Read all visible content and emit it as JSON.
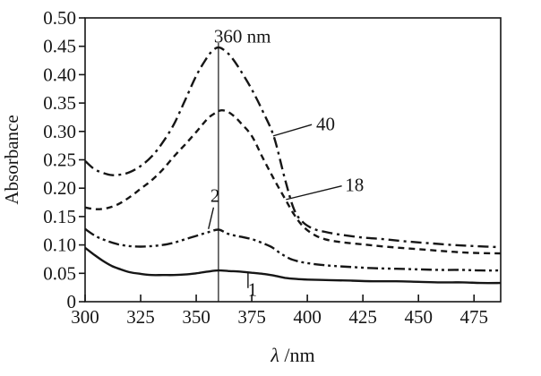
{
  "figure": {
    "background": "#ffffff",
    "ink": "#161616",
    "description": "UV-Vis absorbance spectra at different times with peak marked at 360 nm"
  },
  "chart_data": {
    "type": "line",
    "title": "",
    "xlabel": "λ/nm",
    "ylabel": "Absorbance",
    "xlim": [
      300,
      487
    ],
    "ylim": [
      0,
      0.5
    ],
    "grid": false,
    "legend_position": "none",
    "x_ticks": [
      300,
      325,
      350,
      375,
      400,
      425,
      450,
      475
    ],
    "y_ticks": [
      {
        "value": 0.0,
        "label": "0"
      },
      {
        "value": 0.05,
        "label": "0.05"
      },
      {
        "value": 0.1,
        "label": "0.10"
      },
      {
        "value": 0.15,
        "label": "0.15"
      },
      {
        "value": 0.2,
        "label": "0.20"
      },
      {
        "value": 0.25,
        "label": "0.25"
      },
      {
        "value": 0.3,
        "label": "0.30"
      },
      {
        "value": 0.35,
        "label": "0.35"
      },
      {
        "value": 0.4,
        "label": "0.40"
      },
      {
        "value": 0.45,
        "label": "0.45"
      },
      {
        "value": 0.5,
        "label": "0.50"
      }
    ],
    "marker_line": {
      "x": 360,
      "y0": 0,
      "y1": 0.456,
      "label": "360 nm"
    },
    "series": [
      {
        "name": "40",
        "style": "dash-dot",
        "points": [
          [
            300,
            0.248
          ],
          [
            304,
            0.234
          ],
          [
            308,
            0.227
          ],
          [
            312,
            0.223
          ],
          [
            316,
            0.224
          ],
          [
            320,
            0.228
          ],
          [
            325,
            0.239
          ],
          [
            330,
            0.256
          ],
          [
            335,
            0.281
          ],
          [
            340,
            0.313
          ],
          [
            345,
            0.355
          ],
          [
            350,
            0.398
          ],
          [
            354,
            0.425
          ],
          [
            357,
            0.441
          ],
          [
            360,
            0.448
          ],
          [
            363,
            0.442
          ],
          [
            366,
            0.43
          ],
          [
            370,
            0.407
          ],
          [
            375,
            0.374
          ],
          [
            380,
            0.335
          ],
          [
            385,
            0.29
          ],
          [
            390,
            0.215
          ],
          [
            394,
            0.163
          ],
          [
            398,
            0.14
          ],
          [
            403,
            0.128
          ],
          [
            408,
            0.123
          ],
          [
            415,
            0.118
          ],
          [
            425,
            0.113
          ],
          [
            435,
            0.11
          ],
          [
            445,
            0.106
          ],
          [
            455,
            0.103
          ],
          [
            465,
            0.1
          ],
          [
            475,
            0.098
          ],
          [
            487,
            0.096
          ]
        ]
      },
      {
        "name": "18",
        "style": "dashed",
        "points": [
          [
            300,
            0.166
          ],
          [
            305,
            0.163
          ],
          [
            310,
            0.165
          ],
          [
            315,
            0.172
          ],
          [
            320,
            0.184
          ],
          [
            325,
            0.199
          ],
          [
            330,
            0.214
          ],
          [
            335,
            0.233
          ],
          [
            340,
            0.256
          ],
          [
            345,
            0.277
          ],
          [
            350,
            0.299
          ],
          [
            355,
            0.322
          ],
          [
            358,
            0.331
          ],
          [
            361,
            0.337
          ],
          [
            364,
            0.335
          ],
          [
            367,
            0.327
          ],
          [
            370,
            0.315
          ],
          [
            375,
            0.292
          ],
          [
            380,
            0.253
          ],
          [
            385,
            0.216
          ],
          [
            390,
            0.181
          ],
          [
            394,
            0.154
          ],
          [
            398,
            0.133
          ],
          [
            403,
            0.118
          ],
          [
            408,
            0.11
          ],
          [
            415,
            0.105
          ],
          [
            425,
            0.101
          ],
          [
            435,
            0.097
          ],
          [
            445,
            0.094
          ],
          [
            455,
            0.091
          ],
          [
            465,
            0.088
          ],
          [
            475,
            0.086
          ],
          [
            487,
            0.085
          ]
        ]
      },
      {
        "name": "2",
        "style": "dash-dot-dot",
        "points": [
          [
            300,
            0.128
          ],
          [
            305,
            0.115
          ],
          [
            310,
            0.107
          ],
          [
            315,
            0.101
          ],
          [
            320,
            0.098
          ],
          [
            325,
            0.097
          ],
          [
            330,
            0.098
          ],
          [
            335,
            0.1
          ],
          [
            340,
            0.104
          ],
          [
            345,
            0.11
          ],
          [
            350,
            0.116
          ],
          [
            355,
            0.122
          ],
          [
            360,
            0.127
          ],
          [
            364,
            0.12
          ],
          [
            368,
            0.116
          ],
          [
            372,
            0.113
          ],
          [
            376,
            0.109
          ],
          [
            380,
            0.103
          ],
          [
            384,
            0.096
          ],
          [
            388,
            0.085
          ],
          [
            392,
            0.076
          ],
          [
            396,
            0.071
          ],
          [
            400,
            0.068
          ],
          [
            406,
            0.065
          ],
          [
            412,
            0.063
          ],
          [
            420,
            0.061
          ],
          [
            430,
            0.059
          ],
          [
            440,
            0.058
          ],
          [
            450,
            0.057
          ],
          [
            460,
            0.056
          ],
          [
            470,
            0.056
          ],
          [
            478,
            0.055
          ],
          [
            487,
            0.055
          ]
        ]
      },
      {
        "name": "1",
        "style": "solid",
        "points": [
          [
            300,
            0.095
          ],
          [
            304,
            0.083
          ],
          [
            308,
            0.072
          ],
          [
            312,
            0.063
          ],
          [
            316,
            0.057
          ],
          [
            320,
            0.052
          ],
          [
            325,
            0.049
          ],
          [
            330,
            0.047
          ],
          [
            335,
            0.047
          ],
          [
            340,
            0.047
          ],
          [
            345,
            0.048
          ],
          [
            350,
            0.05
          ],
          [
            355,
            0.053
          ],
          [
            360,
            0.055
          ],
          [
            365,
            0.054
          ],
          [
            370,
            0.053
          ],
          [
            375,
            0.051
          ],
          [
            380,
            0.049
          ],
          [
            385,
            0.046
          ],
          [
            390,
            0.042
          ],
          [
            395,
            0.04
          ],
          [
            400,
            0.039
          ],
          [
            410,
            0.038
          ],
          [
            420,
            0.037
          ],
          [
            430,
            0.036
          ],
          [
            440,
            0.036
          ],
          [
            450,
            0.035
          ],
          [
            460,
            0.034
          ],
          [
            470,
            0.034
          ],
          [
            478,
            0.033
          ],
          [
            487,
            0.033
          ]
        ]
      }
    ],
    "annotations": [
      {
        "id": "label-360nm",
        "text": "360 nm",
        "x": 358.0,
        "y": 0.468,
        "anchor": "start"
      },
      {
        "id": "label-40",
        "text": "40",
        "x": 404.0,
        "y": 0.313,
        "anchor": "start"
      },
      {
        "id": "label-18",
        "text": "18",
        "x": 417.0,
        "y": 0.206,
        "anchor": "start"
      },
      {
        "id": "label-2",
        "text": "2",
        "x": 358.5,
        "y": 0.187,
        "anchor": "middle"
      },
      {
        "id": "label-1",
        "text": "1",
        "x": 375.3,
        "y": 0.021,
        "anchor": "middle"
      }
    ],
    "leader_lines": [
      {
        "for": "40",
        "x1": 402.0,
        "y1": 0.312,
        "x2": 384.6,
        "y2": 0.292
      },
      {
        "for": "18",
        "x1": 415.5,
        "y1": 0.204,
        "x2": 390.4,
        "y2": 0.18
      },
      {
        "for": "2",
        "x1": 357.8,
        "y1": 0.166,
        "x2": 355.5,
        "y2": 0.128
      },
      {
        "for": "1",
        "x1": 373.3,
        "y1": 0.052,
        "x2": 373.3,
        "y2": 0.024
      }
    ]
  }
}
